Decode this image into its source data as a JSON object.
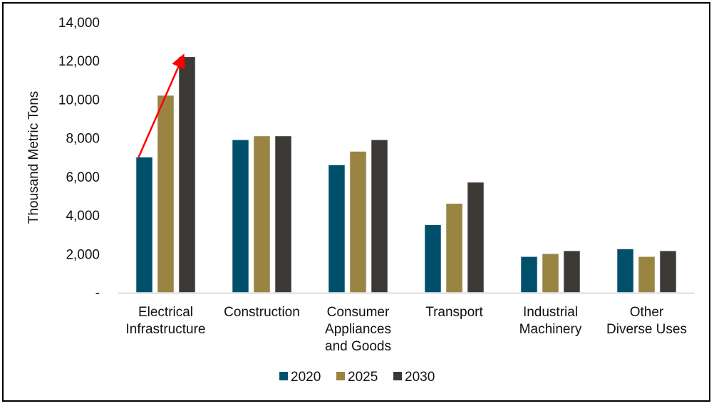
{
  "chart_data": {
    "type": "bar",
    "title": "",
    "xlabel": "",
    "ylabel": "Thousand Metric Tons",
    "ylim": [
      0,
      14000
    ],
    "yticks": [
      0,
      2000,
      4000,
      6000,
      8000,
      10000,
      12000,
      14000
    ],
    "ytick_labels": [
      "-",
      "2,000",
      "4,000",
      "6,000",
      "8,000",
      "10,000",
      "12,000",
      "14,000"
    ],
    "grid": false,
    "legend_position": "bottom",
    "categories": [
      [
        "Electrical",
        "Infrastructure"
      ],
      [
        "Construction"
      ],
      [
        "Consumer",
        "Appliances",
        "and Goods"
      ],
      [
        "Transport"
      ],
      [
        "Industrial",
        "Machinery"
      ],
      [
        "Other",
        "Diverse Uses"
      ]
    ],
    "series": [
      {
        "name": "2020",
        "color": "#00506b",
        "values": [
          7000,
          7900,
          6600,
          3500,
          1850,
          2250
        ]
      },
      {
        "name": "2025",
        "color": "#9a8442",
        "values": [
          10200,
          8100,
          7300,
          4600,
          2000,
          1850
        ]
      },
      {
        "name": "2030",
        "color": "#3d3934",
        "values": [
          12200,
          8100,
          7900,
          5700,
          2150,
          2150
        ]
      }
    ],
    "annotations": [
      {
        "type": "arrow",
        "color": "#ff0000",
        "from": {
          "category": 0,
          "series": 0,
          "value": 7000
        },
        "to": {
          "category": 0,
          "series": 2,
          "value": 12200
        }
      }
    ]
  }
}
